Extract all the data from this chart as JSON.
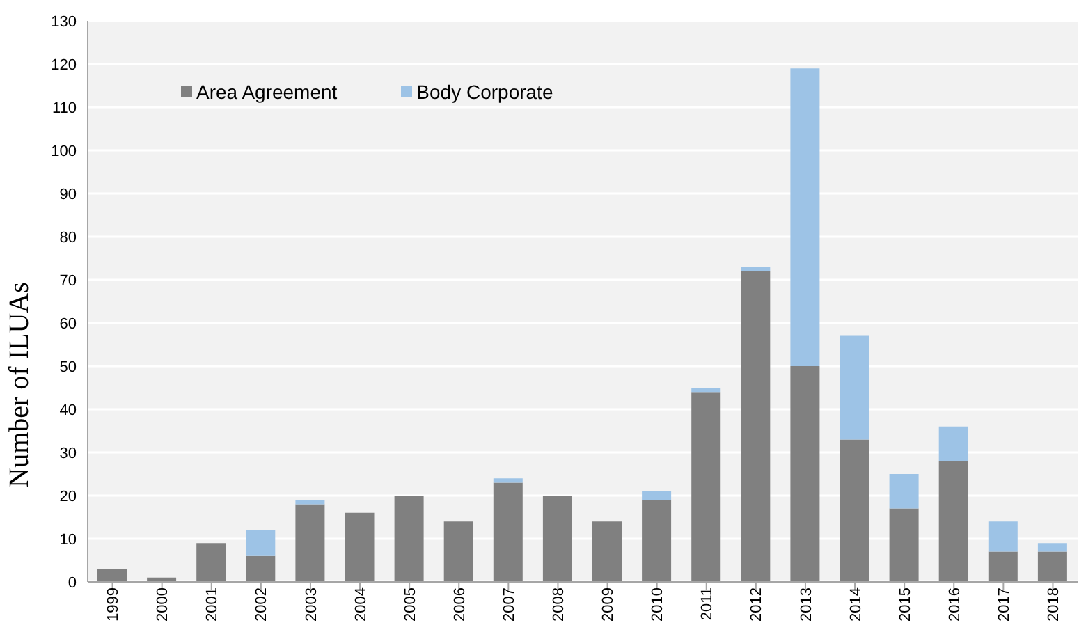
{
  "chart_data": {
    "type": "bar",
    "stacked": true,
    "ylabel": "Number of ILUAs",
    "categories": [
      "1999",
      "2000",
      "2001",
      "2002",
      "2003",
      "2004",
      "2005",
      "2006",
      "2007",
      "2008",
      "2009",
      "2010",
      "2011",
      "2012",
      "2013",
      "2014",
      "2015",
      "2016",
      "2017",
      "2018"
    ],
    "series": [
      {
        "name": "Area Agreement",
        "color": "#808080",
        "values": [
          3,
          1,
          9,
          6,
          18,
          16,
          20,
          14,
          23,
          20,
          14,
          19,
          44,
          72,
          50,
          33,
          17,
          28,
          7,
          7
        ]
      },
      {
        "name": "Body Corporate",
        "color": "#9dc3e6",
        "values": [
          0,
          0,
          0,
          6,
          1,
          0,
          0,
          0,
          1,
          0,
          0,
          2,
          1,
          1,
          69,
          24,
          8,
          8,
          7,
          2
        ]
      }
    ],
    "ylim": [
      0,
      130
    ],
    "yticks": [
      0,
      10,
      20,
      30,
      40,
      50,
      60,
      70,
      80,
      90,
      100,
      110,
      120,
      130
    ],
    "grid": "y",
    "legend": "top left"
  }
}
